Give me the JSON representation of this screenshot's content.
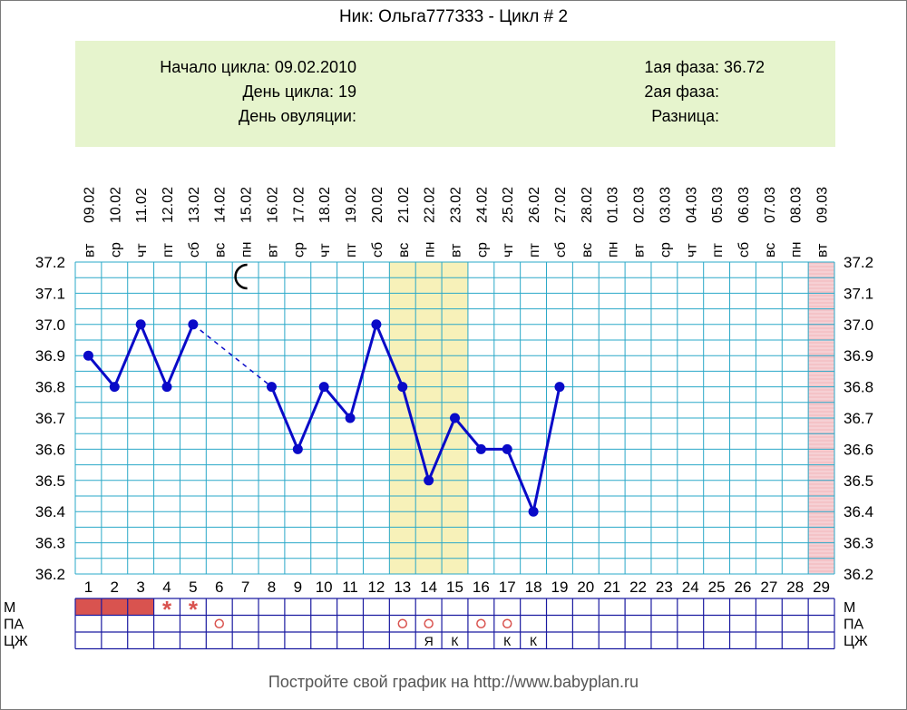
{
  "title": "Ник: Ольга777333 - Цикл # 2",
  "info": {
    "left": [
      {
        "label": "Начало цикла:",
        "value": "09.02.2010"
      },
      {
        "label": "День цикла:",
        "value": "19"
      },
      {
        "label": "День овуляции:",
        "value": ""
      }
    ],
    "right": [
      {
        "label": "1ая фаза:",
        "value": "36.72"
      },
      {
        "label": "2ая фаза:",
        "value": ""
      },
      {
        "label": "Разница:",
        "value": ""
      }
    ]
  },
  "chart_data": {
    "type": "line",
    "dates": [
      "09.02",
      "10.02",
      "11.02",
      "12.02",
      "13.02",
      "14.02",
      "15.02",
      "16.02",
      "17.02",
      "18.02",
      "19.02",
      "20.02",
      "21.02",
      "22.02",
      "23.02",
      "24.02",
      "25.02",
      "26.02",
      "27.02",
      "28.02",
      "01.03",
      "02.03",
      "03.03",
      "04.03",
      "05.03",
      "06.03",
      "07.03",
      "08.03",
      "09.03"
    ],
    "weekdays": [
      "вт",
      "ср",
      "чт",
      "пт",
      "сб",
      "вс",
      "пн",
      "вт",
      "ср",
      "чт",
      "пт",
      "сб",
      "вс",
      "пн",
      "вт",
      "ср",
      "чт",
      "пт",
      "сб",
      "вс",
      "пн",
      "вт",
      "ср",
      "чт",
      "пт",
      "сб",
      "вс",
      "пн",
      "вт"
    ],
    "days": [
      "1",
      "2",
      "3",
      "4",
      "5",
      "6",
      "7",
      "8",
      "9",
      "10",
      "11",
      "12",
      "13",
      "14",
      "15",
      "16",
      "17",
      "18",
      "19",
      "20",
      "21",
      "22",
      "23",
      "24",
      "25",
      "26",
      "27",
      "28",
      "29"
    ],
    "y_ticks": [
      "37.2",
      "37.1",
      "37.0",
      "36.9",
      "36.8",
      "36.7",
      "36.6",
      "36.5",
      "36.4",
      "36.3",
      "36.2"
    ],
    "ylim": [
      36.2,
      37.2
    ],
    "temperatures": [
      36.9,
      36.8,
      37.0,
      36.8,
      37.0,
      null,
      null,
      36.8,
      36.6,
      36.8,
      36.7,
      37.0,
      36.8,
      36.5,
      36.7,
      36.6,
      36.6,
      36.4,
      36.8
    ],
    "dashed_gap": {
      "from_day": 5,
      "to_day": 8
    },
    "highlight_days": [
      13,
      14,
      15
    ],
    "next_cycle_day": 29,
    "moon_day": 7,
    "line_color": "#0a0ac8",
    "grid_color": "#2aa8c8",
    "highlight_color": "#f7f1b9",
    "next_cycle_color": "#f4c3c7",
    "rows": {
      "labels": [
        "М",
        "ПА",
        "ЦЖ"
      ],
      "menstruation_fill_days": [
        1,
        2,
        3
      ],
      "menstruation_star_days": [
        4,
        5
      ],
      "intercourse_days": [
        6,
        13,
        14,
        16,
        17
      ],
      "mucus": [
        {
          "day": 14,
          "text": "Я"
        },
        {
          "day": 15,
          "text": "К"
        },
        {
          "day": 17,
          "text": "К"
        },
        {
          "day": 18,
          "text": "К"
        }
      ],
      "star_symbol": "*",
      "intercourse_symbol": "o"
    }
  },
  "footer": "Постройте свой график на http://www.babyplan.ru"
}
